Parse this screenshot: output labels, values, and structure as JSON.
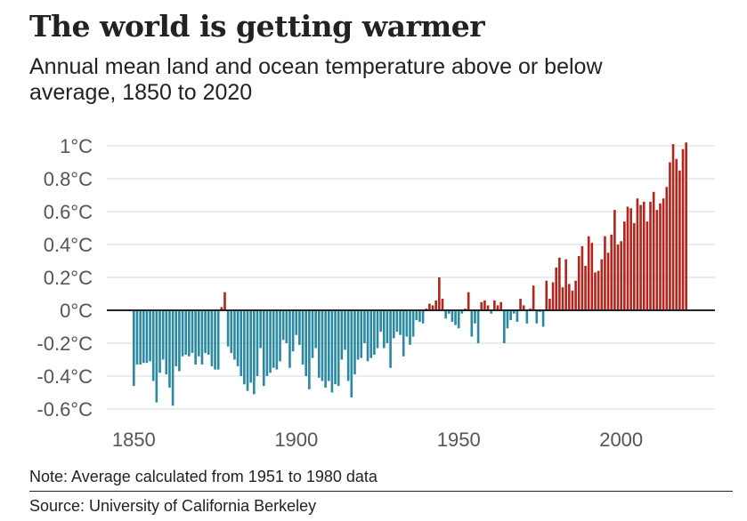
{
  "title": "The world is getting warmer",
  "subtitle": "Annual mean land and ocean temperature above or below average, 1850 to 2020",
  "note": "Note: Average calculated from 1951 to 1980 data",
  "source": "Source: University of California Berkeley",
  "chart_data": {
    "type": "bar",
    "title": "The world is getting warmer",
    "subtitle": "Annual mean land and ocean temperature above or below average, 1850 to 2020",
    "unit": "°C",
    "xlabel": "",
    "ylabel": "",
    "xlim": [
      1850,
      2020
    ],
    "ylim": [
      -0.6,
      1.05
    ],
    "grid": true,
    "y_ticks": [
      {
        "value": 1,
        "label": "1°C"
      },
      {
        "value": 0.8,
        "label": "0.8°C"
      },
      {
        "value": 0.6,
        "label": "0.6°C"
      },
      {
        "value": 0.4,
        "label": "0.4°C"
      },
      {
        "value": 0.2,
        "label": "0.2°C"
      },
      {
        "value": 0,
        "label": "0°C"
      },
      {
        "value": -0.2,
        "label": "-0.2°C"
      },
      {
        "value": -0.4,
        "label": "-0.4°C"
      },
      {
        "value": -0.6,
        "label": "-0.6°C"
      }
    ],
    "x_ticks": [
      {
        "value": 1850,
        "label": "1850"
      },
      {
        "value": 1900,
        "label": "1900"
      },
      {
        "value": 1950,
        "label": "1950"
      },
      {
        "value": 2000,
        "label": "2000"
      }
    ],
    "colors": {
      "above": "#b3261e",
      "below": "#2a8aa3",
      "zero_line": "#222222",
      "grid": "#d9d9d9"
    },
    "x": [
      1850,
      1851,
      1852,
      1853,
      1854,
      1855,
      1856,
      1857,
      1858,
      1859,
      1860,
      1861,
      1862,
      1863,
      1864,
      1865,
      1866,
      1867,
      1868,
      1869,
      1870,
      1871,
      1872,
      1873,
      1874,
      1875,
      1876,
      1877,
      1878,
      1879,
      1880,
      1881,
      1882,
      1883,
      1884,
      1885,
      1886,
      1887,
      1888,
      1889,
      1890,
      1891,
      1892,
      1893,
      1894,
      1895,
      1896,
      1897,
      1898,
      1899,
      1900,
      1901,
      1902,
      1903,
      1904,
      1905,
      1906,
      1907,
      1908,
      1909,
      1910,
      1911,
      1912,
      1913,
      1914,
      1915,
      1916,
      1917,
      1918,
      1919,
      1920,
      1921,
      1922,
      1923,
      1924,
      1925,
      1926,
      1927,
      1928,
      1929,
      1930,
      1931,
      1932,
      1933,
      1934,
      1935,
      1936,
      1937,
      1938,
      1939,
      1940,
      1941,
      1942,
      1943,
      1944,
      1945,
      1946,
      1947,
      1948,
      1949,
      1950,
      1951,
      1952,
      1953,
      1954,
      1955,
      1956,
      1957,
      1958,
      1959,
      1960,
      1961,
      1962,
      1963,
      1964,
      1965,
      1966,
      1967,
      1968,
      1969,
      1970,
      1971,
      1972,
      1973,
      1974,
      1975,
      1976,
      1977,
      1978,
      1979,
      1980,
      1981,
      1982,
      1983,
      1984,
      1985,
      1986,
      1987,
      1988,
      1989,
      1990,
      1991,
      1992,
      1993,
      1994,
      1995,
      1996,
      1997,
      1998,
      1999,
      2000,
      2001,
      2002,
      2003,
      2004,
      2005,
      2006,
      2007,
      2008,
      2009,
      2010,
      2011,
      2012,
      2013,
      2014,
      2015,
      2016,
      2017,
      2018,
      2019,
      2020
    ],
    "values": [
      -0.46,
      -0.33,
      -0.33,
      -0.32,
      -0.32,
      -0.31,
      -0.43,
      -0.56,
      -0.38,
      -0.3,
      -0.39,
      -0.47,
      -0.58,
      -0.34,
      -0.37,
      -0.28,
      -0.27,
      -0.28,
      -0.26,
      -0.33,
      -0.28,
      -0.33,
      -0.26,
      -0.27,
      -0.34,
      -0.36,
      -0.36,
      0.02,
      0.11,
      -0.22,
      -0.26,
      -0.3,
      -0.34,
      -0.4,
      -0.45,
      -0.49,
      -0.44,
      -0.51,
      -0.4,
      -0.23,
      -0.46,
      -0.4,
      -0.38,
      -0.35,
      -0.36,
      -0.31,
      -0.18,
      -0.2,
      -0.35,
      -0.25,
      -0.15,
      -0.21,
      -0.33,
      -0.4,
      -0.48,
      -0.29,
      -0.23,
      -0.41,
      -0.43,
      -0.47,
      -0.43,
      -0.5,
      -0.45,
      -0.46,
      -0.3,
      -0.24,
      -0.43,
      -0.53,
      -0.39,
      -0.3,
      -0.29,
      -0.2,
      -0.31,
      -0.29,
      -0.27,
      -0.23,
      -0.13,
      -0.23,
      -0.2,
      -0.35,
      -0.17,
      -0.13,
      -0.15,
      -0.28,
      -0.16,
      -0.21,
      -0.16,
      -0.06,
      -0.07,
      -0.08,
      0.01,
      0.04,
      0.03,
      0.06,
      0.2,
      0.07,
      -0.05,
      -0.02,
      -0.07,
      -0.09,
      -0.11,
      -0.02,
      0.01,
      0.11,
      -0.16,
      -0.08,
      -0.2,
      0.05,
      0.06,
      0.03,
      -0.02,
      0.06,
      0.03,
      0.05,
      -0.2,
      -0.11,
      -0.06,
      -0.02,
      -0.07,
      0.07,
      0.03,
      -0.08,
      0.01,
      0.15,
      -0.08,
      -0.01,
      -0.1,
      0.18,
      0.07,
      0.17,
      0.26,
      0.32,
      0.14,
      0.31,
      0.16,
      0.12,
      0.18,
      0.33,
      0.39,
      0.27,
      0.45,
      0.41,
      0.23,
      0.24,
      0.31,
      0.45,
      0.35,
      0.46,
      0.61,
      0.4,
      0.42,
      0.54,
      0.63,
      0.62,
      0.53,
      0.68,
      0.64,
      0.66,
      0.54,
      0.66,
      0.72,
      0.61,
      0.65,
      0.68,
      0.75,
      0.9,
      1.01,
      0.92,
      0.85,
      0.98,
      1.02
    ]
  }
}
